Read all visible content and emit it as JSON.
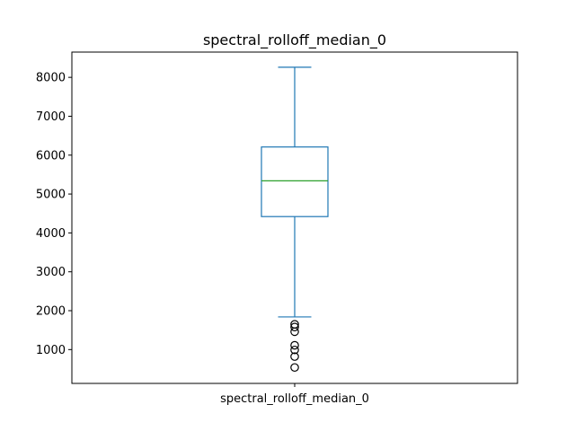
{
  "chart_data": {
    "type": "box",
    "title": "spectral_rolloff_median_0",
    "xlabel": "",
    "ylabel": "",
    "categories": [
      "spectral_rolloff_median_0"
    ],
    "ylim": [
      130,
      8650
    ],
    "yticks": [
      1000,
      2000,
      3000,
      4000,
      5000,
      6000,
      7000,
      8000
    ],
    "grid": false,
    "box": {
      "whisker_low": 1840,
      "q1": 4420,
      "median": 5340,
      "q3": 6210,
      "whisker_high": 8260,
      "outliers": [
        1650,
        1580,
        1460,
        1110,
        990,
        820,
        540
      ]
    },
    "colors": {
      "box": "#1f77b4",
      "median": "#2ca02c",
      "outlier": "#000000"
    }
  }
}
